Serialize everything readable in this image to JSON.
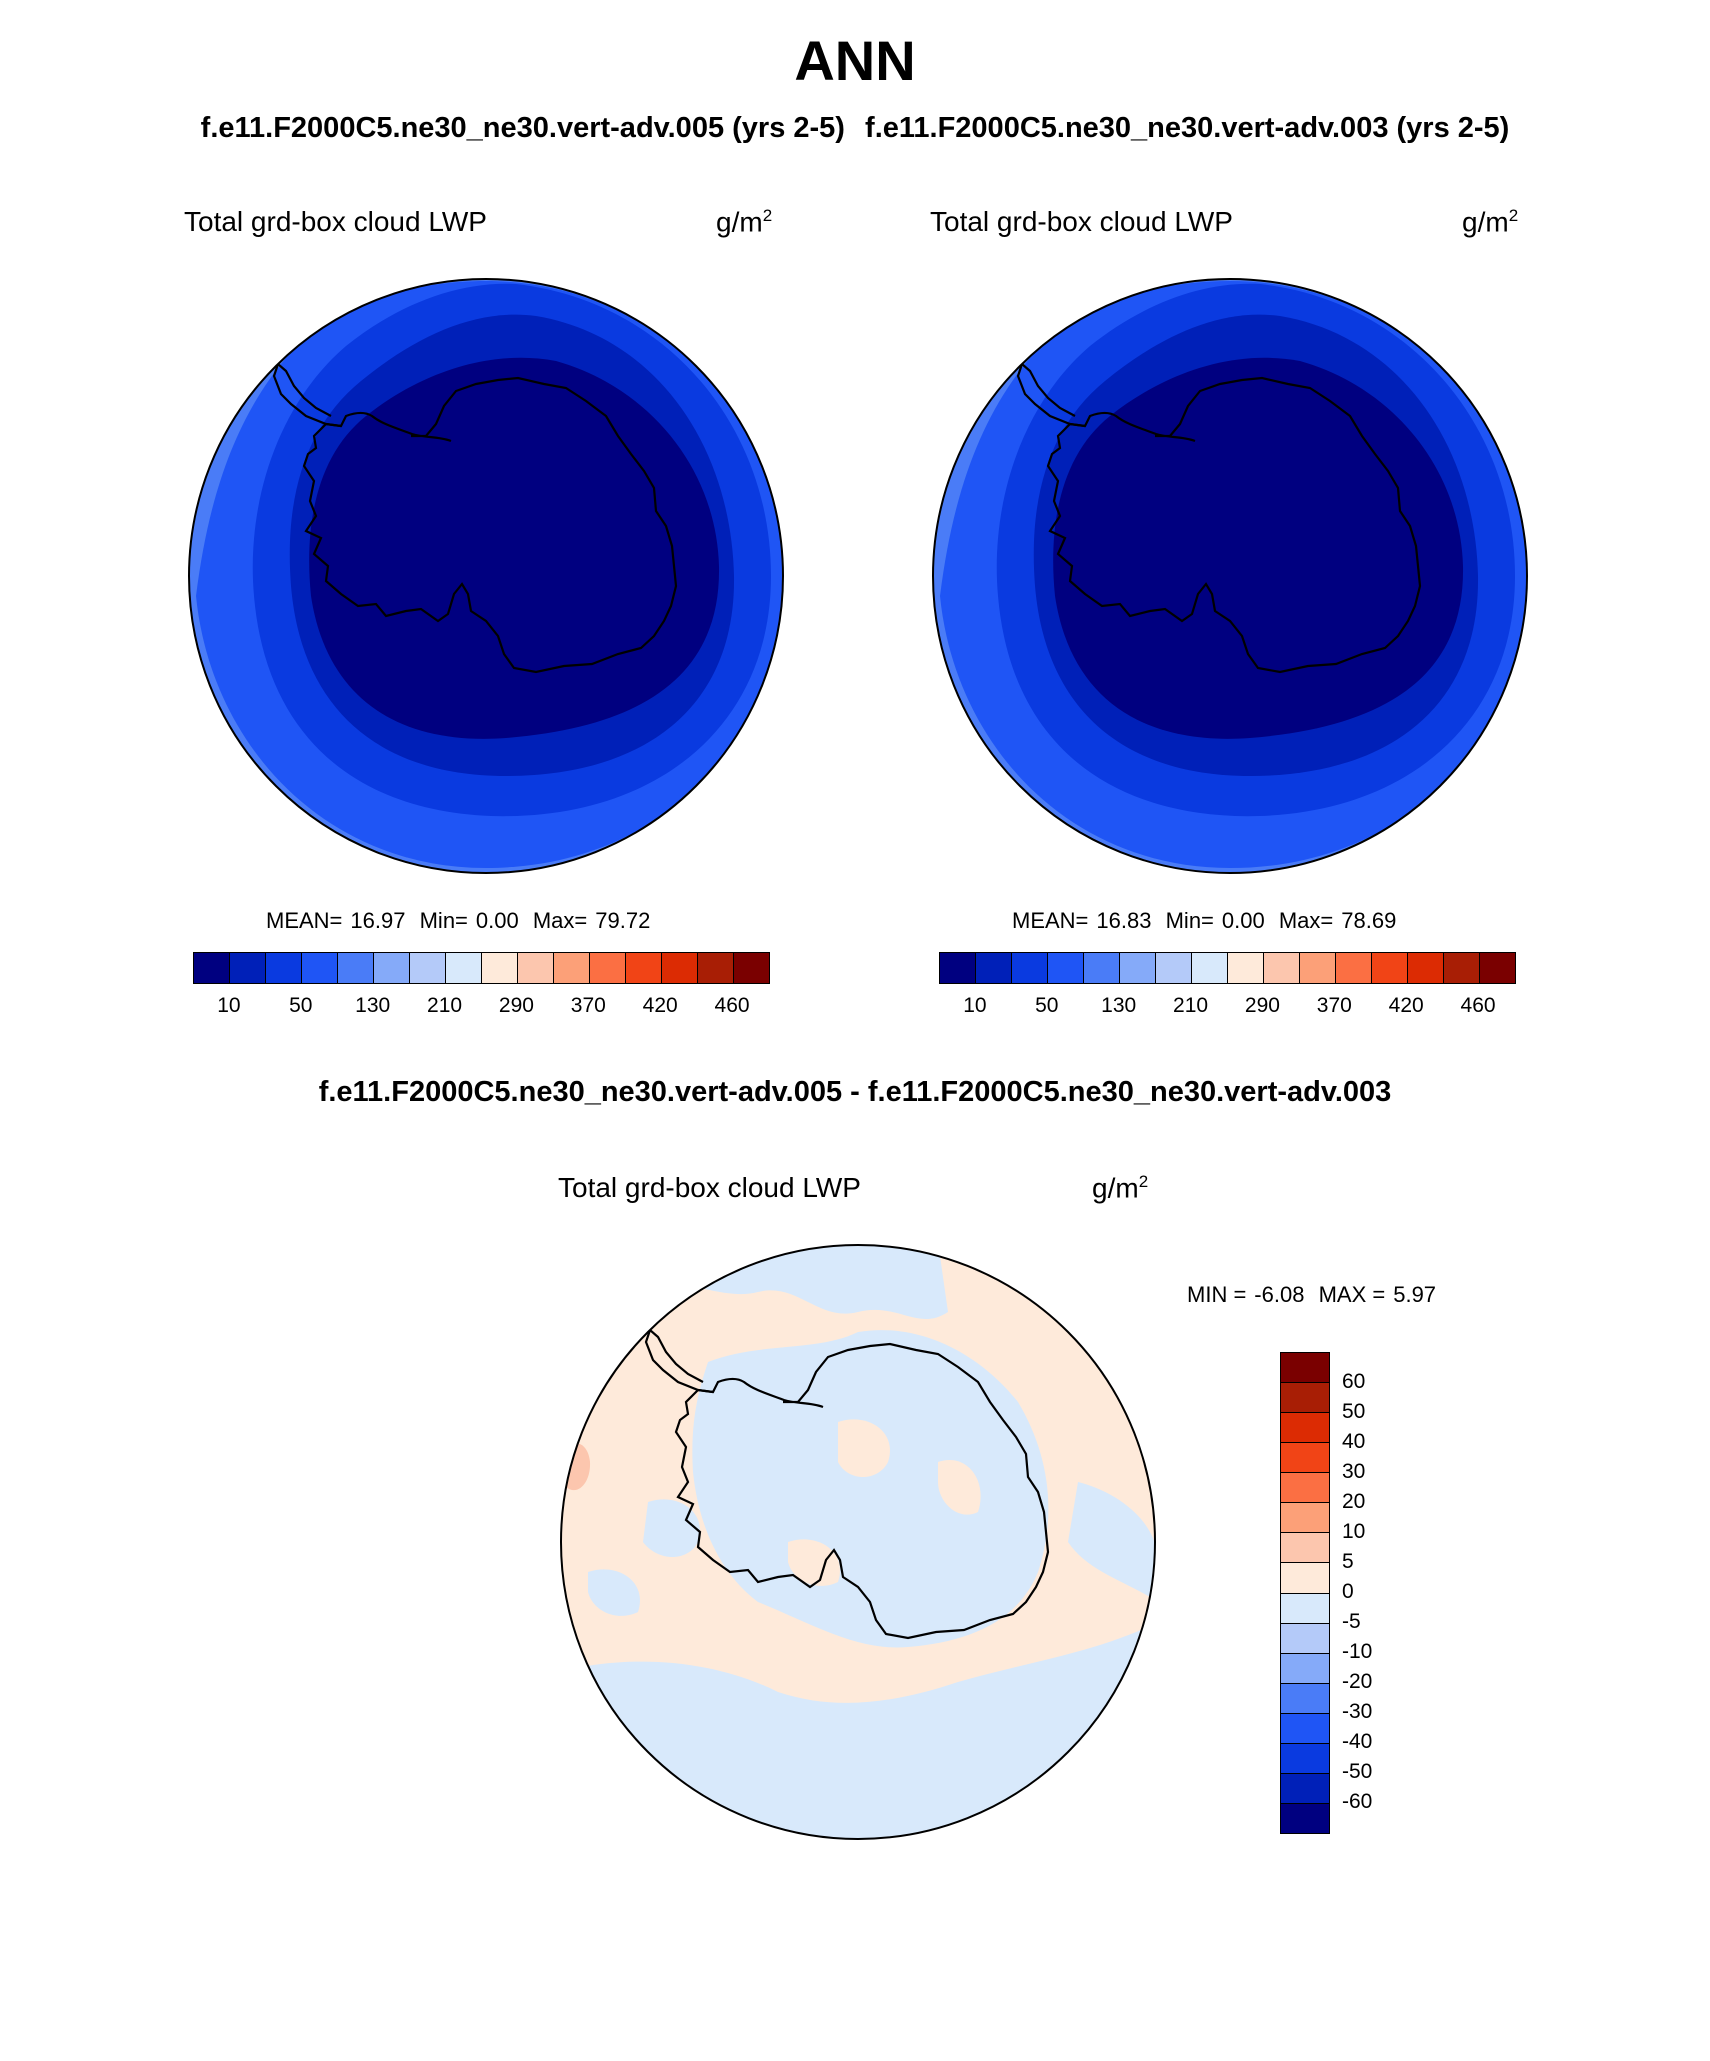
{
  "figure": {
    "title": "ANN",
    "case_a_title": "f.e11.F2000C5.ne30_ne30.vert-adv.005 (yrs 2-5)",
    "case_b_title": "f.e11.F2000C5.ne30_ne30.vert-adv.003 (yrs 2-5)",
    "diff_title": "f.e11.F2000C5.ne30_ne30.vert-adv.005 - f.e11.F2000C5.ne30_ne30.vert-adv.003"
  },
  "panels": {
    "left": {
      "variable": "Total grd-box cloud LWP",
      "unit_base": "g/m",
      "unit_exp": "2",
      "mean_label": "MEAN=",
      "mean": "16.97",
      "min_label": "Min=",
      "min": "0.00",
      "max_label": "Max=",
      "max": "79.72"
    },
    "right": {
      "variable": "Total grd-box cloud LWP",
      "unit_base": "g/m",
      "unit_exp": "2",
      "mean_label": "MEAN=",
      "mean": "16.83",
      "min_label": "Min=",
      "min": "0.00",
      "max_label": "Max=",
      "max": "78.69"
    },
    "diff": {
      "variable": "Total grd-box cloud LWP",
      "unit_base": "g/m",
      "unit_exp": "2",
      "min_label": "MIN =",
      "min": "-6.08",
      "max_label": "MAX =",
      "max": "5.97"
    }
  },
  "colorbar_main": {
    "colors": [
      "#000080",
      "#0020b8",
      "#0a3ae0",
      "#1f55f5",
      "#4a7cf7",
      "#85aaf9",
      "#b4caf9",
      "#d8e9fb",
      "#feeada",
      "#fcc6ae",
      "#fca078",
      "#fb6f43",
      "#f14416",
      "#dc2b03",
      "#a81e05",
      "#7a0000"
    ],
    "tick_labels": [
      "10",
      "50",
      "130",
      "210",
      "290",
      "370",
      "420",
      "460"
    ],
    "tick_after_index": [
      0,
      2,
      4,
      6,
      8,
      10,
      12,
      14
    ]
  },
  "colorbar_diff": {
    "colors_top_to_bottom": [
      "#7a0000",
      "#a81e05",
      "#dc2b03",
      "#f14416",
      "#fb6f43",
      "#fca078",
      "#fcc6ae",
      "#feeada",
      "#d8e9fb",
      "#b4caf9",
      "#85aaf9",
      "#4a7cf7",
      "#1f55f5",
      "#0a3ae0",
      "#0020b8",
      "#000080"
    ],
    "tick_labels_top_to_bottom": [
      "60",
      "50",
      "40",
      "30",
      "20",
      "10",
      "5",
      "0",
      "-5",
      "-10",
      "-20",
      "-30",
      "-40",
      "-50",
      "-60"
    ]
  },
  "map_colors": {
    "land_core": "#000080",
    "ring1": "#0020b8",
    "ring2": "#0a3ae0",
    "ring3": "#1f55f5",
    "ring4": "#4a7cf7",
    "diff_pos": "#feeada",
    "diff_neg": "#d8e9fb",
    "diff_pos2": "#fcc6ae"
  }
}
